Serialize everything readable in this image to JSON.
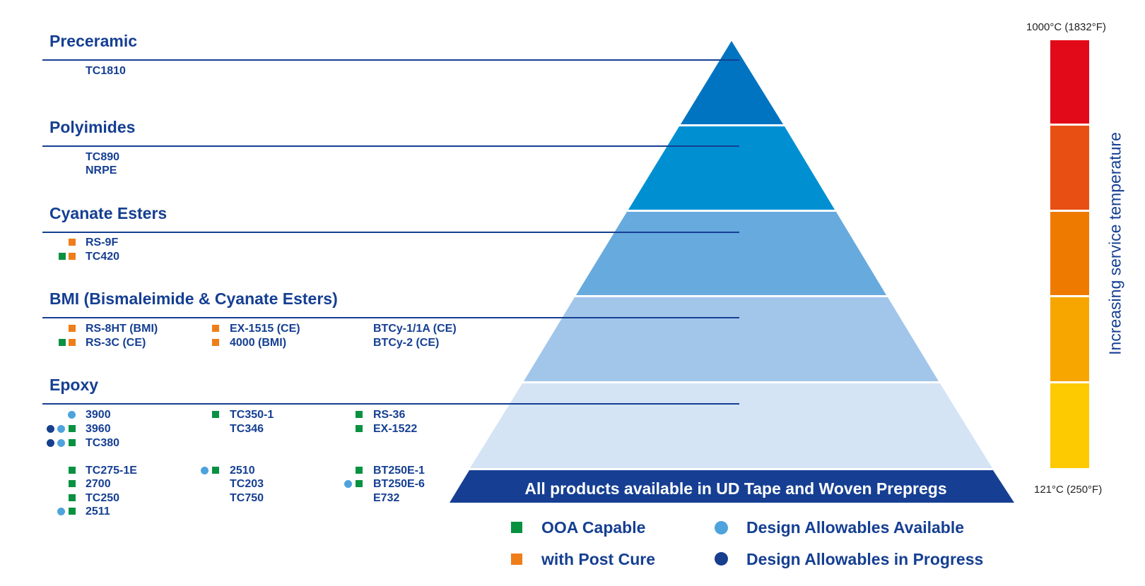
{
  "colors": {
    "brand_navy": "#153f92",
    "ooa_green": "#079141",
    "post_cure_orange": "#ef7d1a",
    "allowables_available": "#4ea3dc",
    "allowables_in_progress": "#173e8f",
    "pyramid_levels": [
      "#0074c1",
      "#0090d2",
      "#67aade",
      "#a2c6ea",
      "#d4e4f5"
    ],
    "base_band": "#163f93",
    "temperature_scale": [
      "#e20a19",
      "#e84f13",
      "#ef7a00",
      "#f7a600",
      "#fdc900"
    ]
  },
  "categories": [
    {
      "id": "preceramic",
      "title": "Preceramic",
      "products": [
        {
          "name": "TC1810",
          "markers": []
        }
      ]
    },
    {
      "id": "polyimides",
      "title": "Polyimides",
      "products": [
        {
          "name": "TC890",
          "markers": []
        },
        {
          "name": "NRPE",
          "markers": []
        }
      ]
    },
    {
      "id": "cyanate",
      "title": "Cyanate Esters",
      "products": [
        {
          "name": "RS-9F",
          "markers": [
            "orange-square"
          ]
        },
        {
          "name": "TC420",
          "markers": [
            "green-square",
            "orange-square"
          ]
        }
      ]
    },
    {
      "id": "bmi",
      "title": "BMI (Bismaleimide & Cyanate Esters)",
      "products": [
        {
          "name": "RS-8HT (BMI)",
          "markers": [
            "orange-square"
          ]
        },
        {
          "name": "RS-3C (CE)",
          "markers": [
            "green-square",
            "orange-square"
          ]
        },
        {
          "name": "EX-1515 (CE)",
          "markers": [
            "orange-square"
          ]
        },
        {
          "name": "4000 (BMI)",
          "markers": [
            "orange-square"
          ]
        },
        {
          "name": "BTCy-1/1A (CE)",
          "markers": []
        },
        {
          "name": "BTCy-2 (CE)",
          "markers": []
        }
      ]
    },
    {
      "id": "epoxy",
      "title": "Epoxy",
      "products": [
        {
          "name": "3900",
          "markers": [
            "light-circle"
          ]
        },
        {
          "name": "3960",
          "markers": [
            "dark-circle",
            "light-circle",
            "green-square"
          ]
        },
        {
          "name": "TC380",
          "markers": [
            "dark-circle",
            "light-circle",
            "green-square"
          ]
        },
        {
          "name": "TC275-1E",
          "markers": [
            "green-square"
          ]
        },
        {
          "name": "2700",
          "markers": [
            "green-square"
          ]
        },
        {
          "name": "TC250",
          "markers": [
            "green-square"
          ]
        },
        {
          "name": "2511",
          "markers": [
            "light-circle",
            "green-square"
          ]
        },
        {
          "name": "TC350-1",
          "markers": [
            "green-square"
          ]
        },
        {
          "name": "TC346",
          "markers": []
        },
        {
          "name": "2510",
          "markers": [
            "light-circle",
            "green-square"
          ]
        },
        {
          "name": "TC203",
          "markers": []
        },
        {
          "name": "TC750",
          "markers": []
        },
        {
          "name": "RS-36",
          "markers": [
            "green-square"
          ]
        },
        {
          "name": "EX-1522",
          "markers": [
            "green-square"
          ]
        },
        {
          "name": "BT250E-1",
          "markers": [
            "green-square"
          ]
        },
        {
          "name": "BT250E-6",
          "markers": [
            "light-circle",
            "green-square"
          ]
        },
        {
          "name": "E732",
          "markers": []
        }
      ]
    }
  ],
  "pyramid_base_text": "All products available in UD Tape and Woven Prepregs",
  "legend": [
    {
      "marker": "green-square",
      "label": "OOA Capable"
    },
    {
      "marker": "orange-square",
      "label": "with Post Cure"
    },
    {
      "marker": "light-circle",
      "label": "Design Allowables Available"
    },
    {
      "marker": "dark-circle",
      "label": "Design Allowables in Progress"
    }
  ],
  "temperature": {
    "top_label": "1000°C (1832°F)",
    "bottom_label": "121°C (250°F)",
    "axis_label": "Increasing service temperature"
  }
}
